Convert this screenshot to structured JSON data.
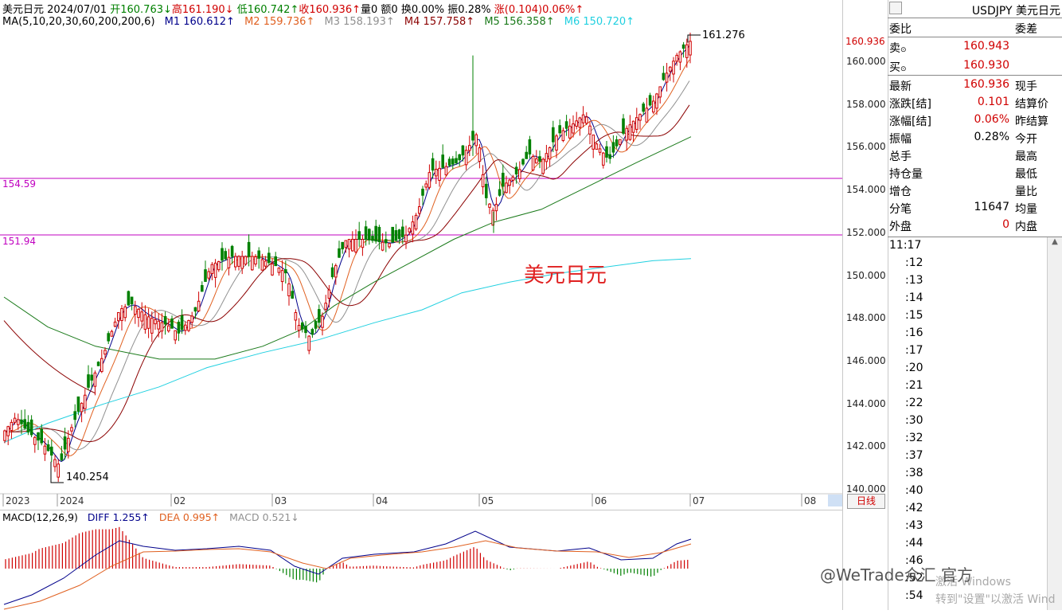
{
  "header": {
    "title": "美元日元",
    "date": "2024/07/01",
    "open": "开160.763↓",
    "high": "高161.190↓",
    "low": "低160.742↑",
    "close": "收160.936↑",
    "volume": "量0",
    "amount": "额0",
    "turnover": "换0.00%",
    "amplitude": "振0.28%",
    "change": "涨(0.104)0.06%↑"
  },
  "ma": {
    "label": "MA(5,10,20,30,60,200,200,6)",
    "m1": "M1 160.612↑",
    "m2": "M2 159.736↑",
    "m3": "M3 158.193↑",
    "m4": "M4 157.758↑",
    "m5": "M5 156.358↑",
    "m6": "M6 150.720↑"
  },
  "chart": {
    "symbol_label": "美元日元",
    "high_label": "161.276",
    "low_label": "140.254",
    "hline1": "154.59",
    "hline2": "151.94",
    "current_price": "160.936",
    "y_ticks": [
      "160.000",
      "158.000",
      "156.000",
      "154.000",
      "152.000",
      "150.000",
      "148.000",
      "146.000",
      "144.000",
      "142.000",
      "140.000"
    ],
    "x_ticks": [
      "2023",
      "2024",
      "02",
      "03",
      "04",
      "05",
      "06",
      "07",
      "08"
    ],
    "period_button": "日线"
  },
  "macd": {
    "label": "MACD(12,26,9)",
    "diff": "DIFF 1.255↑",
    "dea": "DEA 0.995↑",
    "macd": "MACD 0.521↓"
  },
  "panel": {
    "symbol": "USDJPY 美元日元",
    "wb_label": "委比",
    "wc_label": "委差",
    "sell_label": "卖",
    "sell_value": "160.943",
    "buy_label": "买",
    "buy_value": "160.930",
    "rows": [
      {
        "k": "最新",
        "v": "160.936",
        "k2": "现手",
        "red": true
      },
      {
        "k": "涨跌[结]",
        "v": "0.101",
        "k2": "结算价",
        "red": true
      },
      {
        "k": "涨幅[结]",
        "v": "0.06%",
        "k2": "昨结算",
        "red": true
      },
      {
        "k": "振幅",
        "v": "0.28%",
        "k2": "今开",
        "red": false
      },
      {
        "k": "总手",
        "v": "",
        "k2": "最高",
        "red": false
      },
      {
        "k": "持仓量",
        "v": "",
        "k2": "最低",
        "red": false
      },
      {
        "k": "增仓",
        "v": "",
        "k2": "量比",
        "red": false
      },
      {
        "k": "分笔",
        "v": "11647",
        "k2": "均量",
        "red": false
      },
      {
        "k": "外盘",
        "v": "0",
        "k2": "内盘",
        "red": true
      }
    ],
    "times": [
      "11:17",
      ":12",
      ":13",
      ":14",
      ":15",
      ":16",
      ":17",
      ":20",
      ":21",
      ":22",
      ":30",
      ":32",
      ":37",
      ":38",
      ":40",
      ":42",
      ":43",
      ":44",
      ":46",
      ":52",
      ":54"
    ]
  },
  "overlay": {
    "watermark": "@WeTrade众汇 官方",
    "win1": "激活 Windows",
    "win2": "转到\"设置\"以激活 Wind"
  },
  "colors": {
    "up": "#d00000",
    "down": "#008000",
    "m1": "#00008b",
    "m2": "#e06020",
    "m3": "#909090",
    "m4": "#8b0000",
    "m5": "#1a7a1a",
    "m6": "#20d0e0",
    "hline": "#c000c0"
  }
}
